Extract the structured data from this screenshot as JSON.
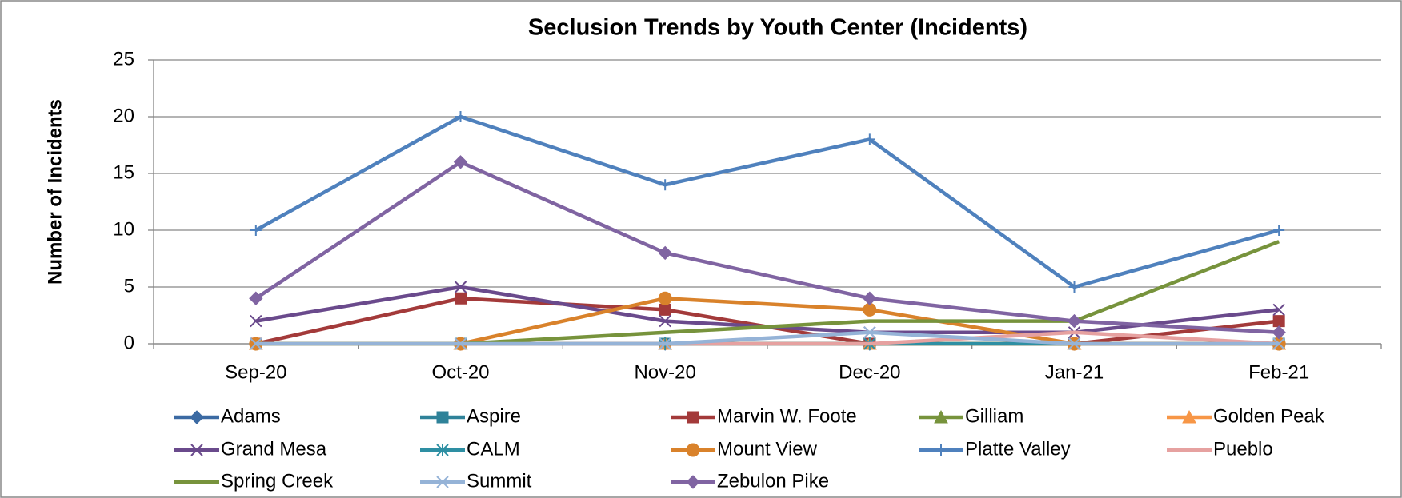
{
  "chart_data": {
    "type": "line",
    "title": "Seclusion Trends by Youth Center (Incidents)",
    "y_label": "Number of Incidents",
    "categories": [
      "Sep-20",
      "Oct-20",
      "Nov-20",
      "Dec-20",
      "Jan-21",
      "Feb-21"
    ],
    "ylim": [
      0,
      25
    ],
    "yticks": [
      0,
      5,
      10,
      15,
      20,
      25
    ],
    "grid": true,
    "series": [
      {
        "name": "Adams",
        "color": "#3b6aa3",
        "marker": "diamond",
        "values": [
          0,
          0,
          0,
          0,
          0,
          0
        ]
      },
      {
        "name": "Aspire",
        "color": "#2f8299",
        "marker": "square",
        "values": [
          0,
          0,
          0,
          0,
          0,
          0
        ]
      },
      {
        "name": "Marvin W. Foote",
        "color": "#a33a3a",
        "marker": "square",
        "values": [
          0,
          4,
          3,
          0,
          0,
          2
        ]
      },
      {
        "name": "Gilliam",
        "color": "#77933c",
        "marker": "triangle",
        "values": [
          0,
          0,
          0,
          0,
          0,
          0
        ]
      },
      {
        "name": "Golden Peak",
        "color": "#f79646",
        "marker": "triangle",
        "values": [
          0,
          0,
          0,
          0,
          0,
          0
        ]
      },
      {
        "name": "Grand Mesa",
        "color": "#6a4a8c",
        "marker": "x",
        "values": [
          2,
          5,
          2,
          1,
          1,
          3
        ]
      },
      {
        "name": "CALM",
        "color": "#2e8fa3",
        "marker": "star",
        "values": [
          0,
          0,
          0,
          0,
          0,
          0
        ]
      },
      {
        "name": "Mount View",
        "color": "#d9822b",
        "marker": "circle",
        "values": [
          0,
          0,
          4,
          3,
          0,
          0
        ]
      },
      {
        "name": "Platte Valley",
        "color": "#4f81bd",
        "marker": "plus",
        "values": [
          10,
          20,
          14,
          18,
          5,
          10
        ]
      },
      {
        "name": "Pueblo",
        "color": "#e6a1a0",
        "marker": "none",
        "values": [
          0,
          0,
          0,
          0,
          1,
          0
        ]
      },
      {
        "name": "Spring Creek",
        "color": "#77933c",
        "marker": "none",
        "values": [
          0,
          0,
          1,
          2,
          2,
          9
        ]
      },
      {
        "name": "Summit",
        "color": "#95b3d7",
        "marker": "x",
        "values": [
          0,
          0,
          0,
          1,
          0,
          0
        ]
      },
      {
        "name": "Zebulon Pike",
        "color": "#8064a2",
        "marker": "diamond",
        "values": [
          4,
          16,
          8,
          4,
          2,
          1
        ]
      }
    ]
  }
}
